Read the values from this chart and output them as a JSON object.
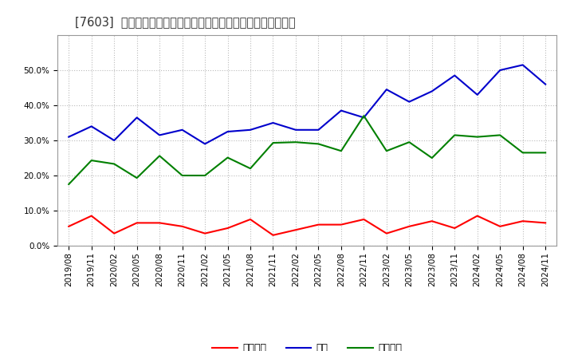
{
  "title": "[7603]  売上債権、在庫、買入債務の総資産に対する比率の推移",
  "dates": [
    "2019/08",
    "2019/11",
    "2020/02",
    "2020/05",
    "2020/08",
    "2020/11",
    "2021/02",
    "2021/05",
    "2021/08",
    "2021/11",
    "2022/02",
    "2022/05",
    "2022/08",
    "2022/11",
    "2023/02",
    "2023/05",
    "2023/08",
    "2023/11",
    "2024/02",
    "2024/05",
    "2024/08",
    "2024/11"
  ],
  "accounts_receivable": [
    0.055,
    0.085,
    0.035,
    0.065,
    0.065,
    0.055,
    0.035,
    0.05,
    0.075,
    0.03,
    0.045,
    0.06,
    0.06,
    0.075,
    0.035,
    0.055,
    0.07,
    0.05,
    0.085,
    0.055,
    0.07,
    0.065
  ],
  "inventory": [
    0.31,
    0.34,
    0.3,
    0.365,
    0.315,
    0.33,
    0.29,
    0.325,
    0.33,
    0.35,
    0.33,
    0.33,
    0.385,
    0.365,
    0.445,
    0.41,
    0.44,
    0.485,
    0.43,
    0.5,
    0.515,
    0.46
  ],
  "accounts_payable": [
    0.175,
    0.243,
    0.233,
    0.193,
    0.256,
    0.2,
    0.2,
    0.251,
    0.22,
    0.293,
    0.295,
    0.29,
    0.27,
    0.37,
    0.27,
    0.295,
    0.25,
    0.315,
    0.31,
    0.315,
    0.265,
    0.265
  ],
  "line_colors": {
    "accounts_receivable": "#ff0000",
    "inventory": "#0000cc",
    "accounts_payable": "#008000"
  },
  "legend_labels": {
    "accounts_receivable": "売上債権",
    "inventory": "在庫",
    "accounts_payable": "買入債務"
  },
  "ylim": [
    0.0,
    0.6
  ],
  "yticks": [
    0.0,
    0.1,
    0.2,
    0.3,
    0.4,
    0.5
  ],
  "background_color": "#ffffff",
  "plot_bg_color": "#ffffff",
  "grid_color": "#bbbbbb",
  "title_fontsize": 10.5,
  "tick_fontsize": 7.5,
  "legend_fontsize": 9
}
